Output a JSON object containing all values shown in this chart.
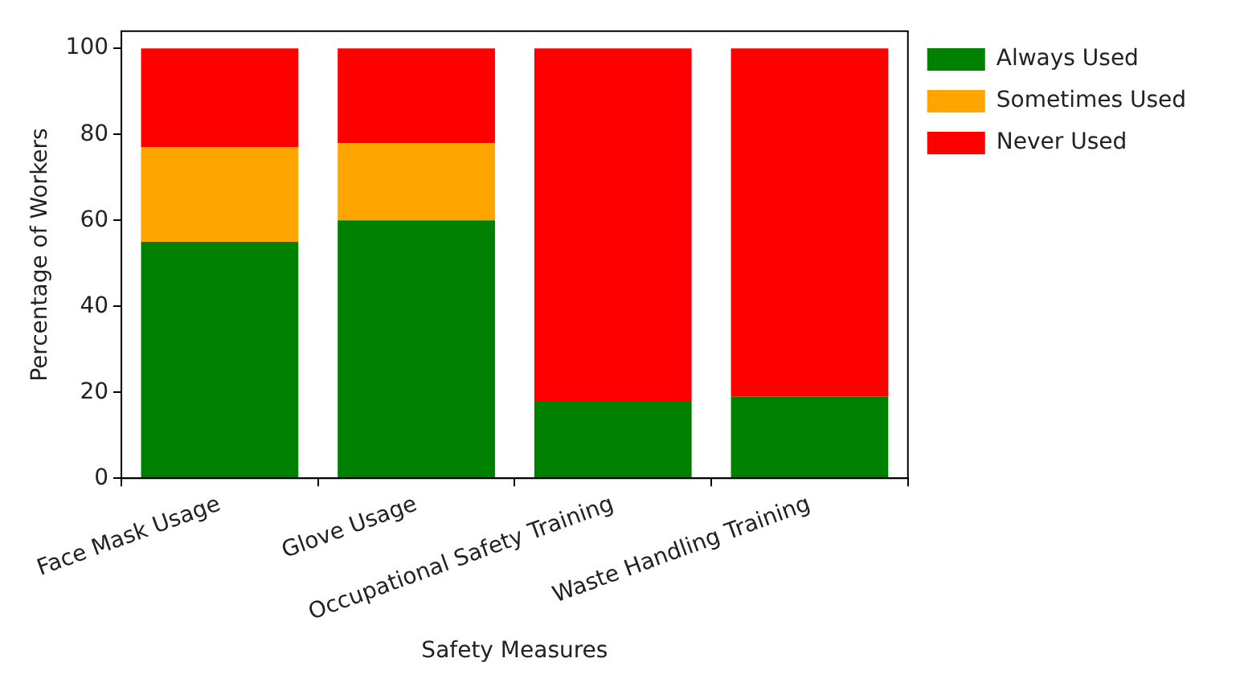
{
  "chart_data": {
    "type": "bar",
    "stacked": true,
    "xlabel": "Safety Measures",
    "ylabel": "Percentage of Workers",
    "categories": [
      "Face Mask Usage",
      "Glove Usage",
      "Occupational Safety Training",
      "Waste Handling Training"
    ],
    "series": [
      {
        "name": "Always Used",
        "color": "#008000",
        "values": [
          55,
          60,
          18,
          19
        ]
      },
      {
        "name": "Sometimes Used",
        "color": "#ffa500",
        "values": [
          22,
          18,
          0,
          0
        ]
      },
      {
        "name": "Never Used",
        "color": "#ff0000",
        "values": [
          23,
          22,
          82,
          81
        ]
      }
    ],
    "ylim": [
      0,
      104
    ],
    "yticks": [
      0,
      20,
      40,
      60,
      80,
      100
    ],
    "grid": false,
    "legend": "top right"
  }
}
